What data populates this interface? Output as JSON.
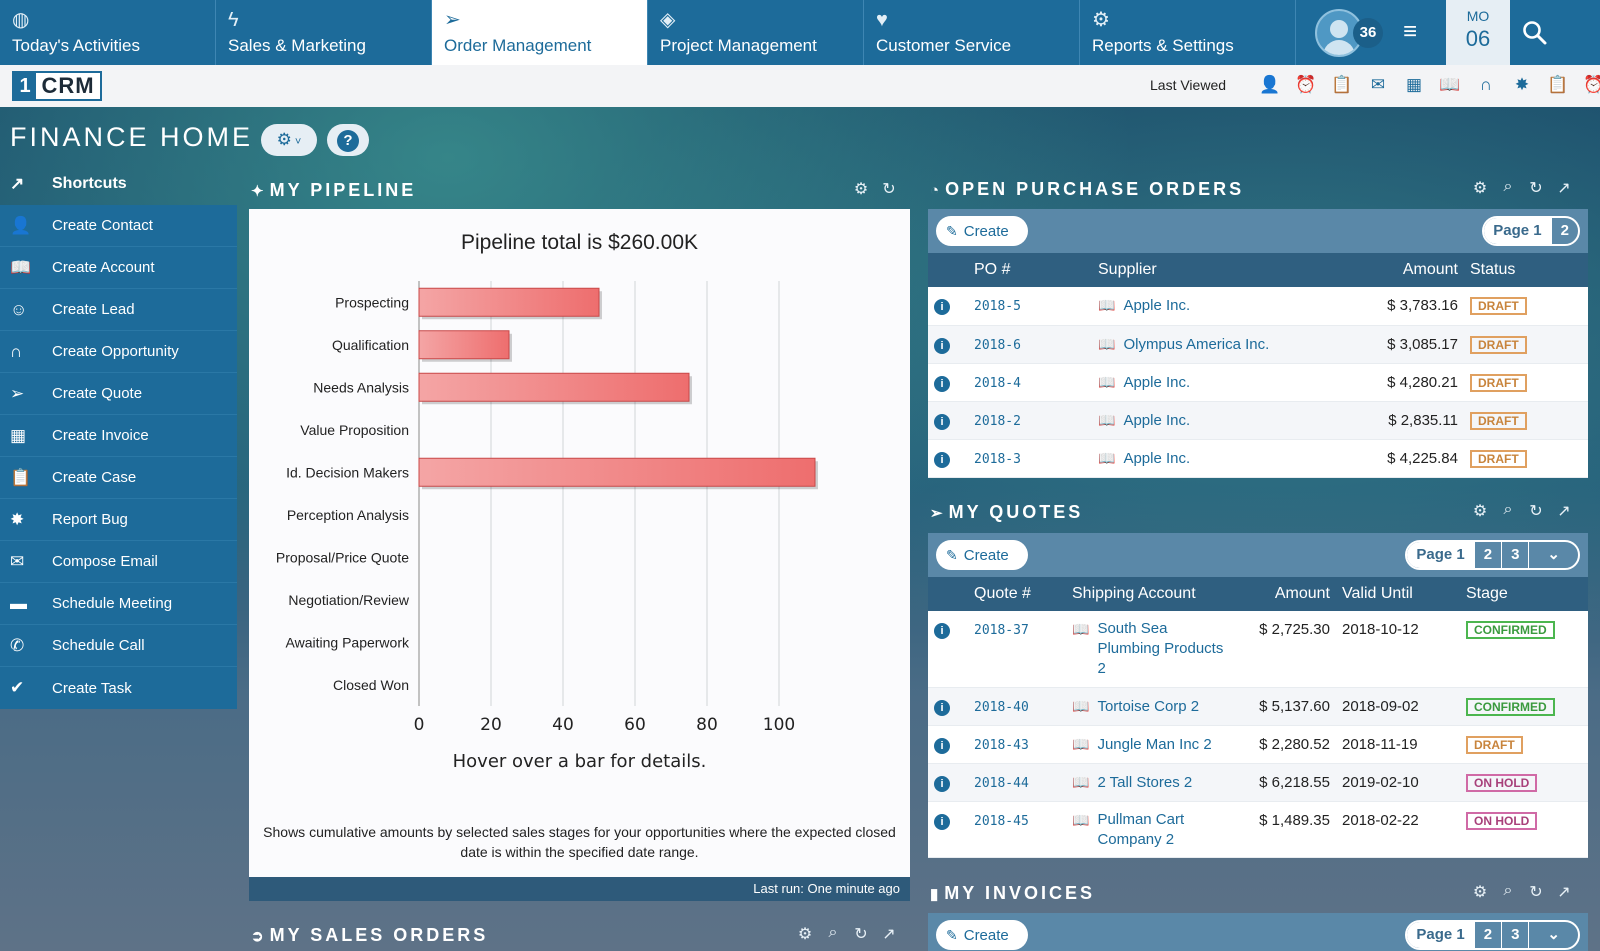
{
  "nav": {
    "tabs": [
      {
        "label": "Today's Activities",
        "icon": "globe-icon"
      },
      {
        "label": "Sales & Marketing",
        "icon": "lightning-icon"
      },
      {
        "label": "Order Management",
        "icon": "paper-plane-icon"
      },
      {
        "label": "Project Management",
        "icon": "cube-icon"
      },
      {
        "label": "Customer Service",
        "icon": "heart-icon"
      },
      {
        "label": "Reports & Settings",
        "icon": "gear-icon"
      }
    ],
    "notification_count": "36",
    "date_month": "MO",
    "date_day": "06"
  },
  "toolbar": {
    "logo_one": "1",
    "logo_crm": "CRM",
    "last_viewed": "Last Viewed"
  },
  "page": {
    "title": "FINANCE HOME"
  },
  "sidebar": {
    "heading": "Shortcuts",
    "items": [
      {
        "label": "Create Contact",
        "icon": "person-icon"
      },
      {
        "label": "Create Account",
        "icon": "book-icon"
      },
      {
        "label": "Create Lead",
        "icon": "smiley-icon"
      },
      {
        "label": "Create Opportunity",
        "icon": "magnet-icon"
      },
      {
        "label": "Create Quote",
        "icon": "paper-plane-icon"
      },
      {
        "label": "Create Invoice",
        "icon": "calculator-icon"
      },
      {
        "label": "Create Case",
        "icon": "clipboard-icon"
      },
      {
        "label": "Report Bug",
        "icon": "bug-icon"
      },
      {
        "label": "Compose Email",
        "icon": "envelope-icon"
      },
      {
        "label": "Schedule Meeting",
        "icon": "meeting-icon"
      },
      {
        "label": "Schedule Call",
        "icon": "phone-icon"
      },
      {
        "label": "Create Task",
        "icon": "check-circle-icon"
      }
    ]
  },
  "pipeline": {
    "title": "MY PIPELINE",
    "hint": "Hover over a bar for details.",
    "description": "Shows cumulative amounts by selected sales stages for your opportunities where the expected closed date is within the specified date range.",
    "last_run": "Last run: One minute ago"
  },
  "chart_data": {
    "type": "bar",
    "orientation": "horizontal",
    "title": "Pipeline total is $260.00K",
    "categories": [
      "Prospecting",
      "Qualification",
      "Needs Analysis",
      "Value Proposition",
      "Id. Decision Makers",
      "Perception Analysis",
      "Proposal/Price Quote",
      "Negotiation/Review",
      "Awaiting Paperwork",
      "Closed Won"
    ],
    "values": [
      50,
      25,
      75,
      0,
      110,
      0,
      0,
      0,
      0,
      0
    ],
    "xlim": [
      0,
      110
    ],
    "xticks": [
      0,
      20,
      40,
      60,
      80,
      100
    ],
    "grid": true,
    "bar_color": "#ee6e6e"
  },
  "sales_orders": {
    "title": "MY SALES ORDERS"
  },
  "purchase_orders": {
    "title": "OPEN PURCHASE ORDERS",
    "create_label": "Create",
    "pages": [
      "Page 1",
      "2"
    ],
    "columns": [
      "PO #",
      "Supplier",
      "Amount",
      "Status"
    ],
    "rows": [
      {
        "po": "2018-5",
        "supplier": "Apple Inc.",
        "amount": "$ 3,783.16",
        "status": "DRAFT"
      },
      {
        "po": "2018-6",
        "supplier": "Olympus America Inc.",
        "amount": "$ 3,085.17",
        "status": "DRAFT"
      },
      {
        "po": "2018-4",
        "supplier": "Apple Inc.",
        "amount": "$ 4,280.21",
        "status": "DRAFT"
      },
      {
        "po": "2018-2",
        "supplier": "Apple Inc.",
        "amount": "$ 2,835.11",
        "status": "DRAFT"
      },
      {
        "po": "2018-3",
        "supplier": "Apple Inc.",
        "amount": "$ 4,225.84",
        "status": "DRAFT"
      }
    ]
  },
  "quotes": {
    "title": "MY QUOTES",
    "create_label": "Create",
    "pages": [
      "Page 1",
      "2",
      "3"
    ],
    "columns": [
      "Quote #",
      "Shipping Account",
      "Amount",
      "Valid Until",
      "Stage"
    ],
    "rows": [
      {
        "quote": "2018-37",
        "account": "South Sea Plumbing Products 2",
        "amount": "$ 2,725.30",
        "valid": "2018-10-12",
        "stage": "CONFIRMED",
        "kind": "confirmed"
      },
      {
        "quote": "2018-40",
        "account": "Tortoise Corp 2",
        "amount": "$ 5,137.60",
        "valid": "2018-09-02",
        "stage": "CONFIRMED",
        "kind": "confirmed"
      },
      {
        "quote": "2018-43",
        "account": "Jungle Man Inc 2",
        "amount": "$ 2,280.52",
        "valid": "2018-11-19",
        "stage": "DRAFT",
        "kind": "draft"
      },
      {
        "quote": "2018-44",
        "account": "2 Tall Stores 2",
        "amount": "$ 6,218.55",
        "valid": "2019-02-10",
        "stage": "ON HOLD",
        "kind": "onhold"
      },
      {
        "quote": "2018-45",
        "account": "Pullman Cart Company 2",
        "amount": "$ 1,489.35",
        "valid": "2018-02-22",
        "stage": "ON HOLD",
        "kind": "onhold"
      }
    ]
  },
  "invoices": {
    "title": "MY INVOICES",
    "create_label": "Create",
    "pages": [
      "Page 1",
      "2",
      "3"
    ]
  }
}
